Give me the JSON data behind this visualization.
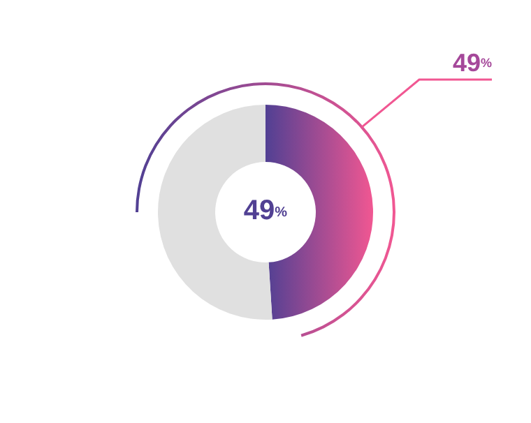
{
  "chart_data": {
    "type": "donut",
    "categories": [
      null,
      null
    ],
    "values": [
      49,
      51
    ],
    "colors": [
      "#a5489a",
      "#e0e0e0"
    ],
    "annotations": [
      "49%",
      "49%"
    ]
  }
}
